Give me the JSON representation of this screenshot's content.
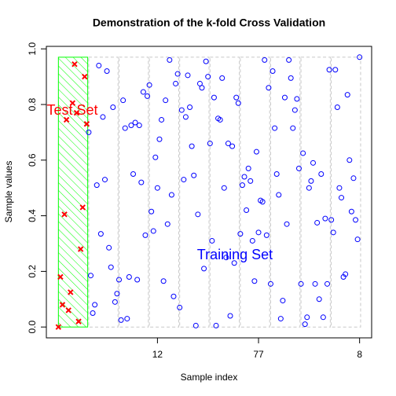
{
  "chart_data": {
    "type": "scatter",
    "title": "Demonstration of the k-fold Cross Validation",
    "xlabel": "Sample index",
    "ylabel": "Sample values",
    "xlim": [
      -4.96,
      155.96
    ],
    "ylim": [
      -0.039,
      1.009
    ],
    "xticks": [
      {
        "value": 50,
        "label": "12"
      },
      {
        "value": 100,
        "label": "77"
      },
      {
        "value": 150,
        "label": "8"
      }
    ],
    "yticks": [
      {
        "value": 0,
        "label": "0.0"
      },
      0.2,
      0.4,
      0.6,
      0.8,
      {
        "value": 1,
        "label": "1.0"
      }
    ],
    "series": [
      {
        "name": "Test Set",
        "color": "#ff0000",
        "fold_color": "#00ff00",
        "x": [
          1,
          2,
          3,
          4,
          5,
          6,
          7,
          8,
          9,
          10,
          11,
          12,
          13,
          14,
          15
        ],
        "values": [
          0.0,
          0.18,
          0.08,
          0.405,
          0.745,
          0.06,
          0.125,
          0.805,
          0.945,
          0.77,
          0.02,
          0.28,
          0.43,
          0.9,
          0.73
        ]
      },
      {
        "name": "Training Set",
        "color": "#0000ff",
        "fold_color": "#c8c8c8",
        "x": [
          16,
          17,
          18,
          19,
          20,
          21,
          22,
          23,
          24,
          25,
          26,
          27,
          28,
          29,
          30,
          31,
          32,
          33,
          34,
          35,
          36,
          37,
          38,
          39,
          40,
          41,
          42,
          43,
          44,
          45,
          46,
          47,
          48,
          49,
          50,
          51,
          52,
          53,
          54,
          55,
          56,
          57,
          58,
          59,
          60,
          61,
          62,
          63,
          64,
          65,
          66,
          67,
          68,
          69,
          70,
          71,
          72,
          73,
          74,
          75,
          76,
          77,
          78,
          79,
          80,
          81,
          82,
          83,
          84,
          85,
          86,
          87,
          88,
          89,
          90,
          91,
          92,
          93,
          94,
          95,
          96,
          97,
          98,
          99,
          100,
          101,
          102,
          103,
          104,
          105,
          106,
          107,
          108,
          109,
          110,
          111,
          112,
          113,
          114,
          115,
          116,
          117,
          118,
          119,
          120,
          121,
          122,
          123,
          124,
          125,
          126,
          127,
          128,
          129,
          130,
          131,
          132,
          133,
          134,
          135,
          136,
          137,
          138,
          139,
          140,
          141,
          142,
          143,
          144,
          145,
          146,
          147,
          148,
          149,
          150
        ],
        "values": [
          0.7,
          0.185,
          0.05,
          0.08,
          0.51,
          0.94,
          0.335,
          0.755,
          0.53,
          0.92,
          0.285,
          0.215,
          0.79,
          0.09,
          0.12,
          0.17,
          0.025,
          0.815,
          0.715,
          0.03,
          0.18,
          0.725,
          0.55,
          0.735,
          0.17,
          0.725,
          0.52,
          0.845,
          0.33,
          0.83,
          0.87,
          0.415,
          0.345,
          0.61,
          0.5,
          0.675,
          0.745,
          0.165,
          0.815,
          0.37,
          0.96,
          0.475,
          0.11,
          0.875,
          0.91,
          0.07,
          0.78,
          0.53,
          0.755,
          0.905,
          0.79,
          0.65,
          0.545,
          0.005,
          0.405,
          0.875,
          0.86,
          0.21,
          0.955,
          0.9,
          0.66,
          0.31,
          0.825,
          0.005,
          0.75,
          0.745,
          0.895,
          0.5,
          0.25,
          0.66,
          0.04,
          0.65,
          0.23,
          0.825,
          0.805,
          0.335,
          0.51,
          0.54,
          0.42,
          0.57,
          0.525,
          0.31,
          0.165,
          0.63,
          0.34,
          0.455,
          0.45,
          0.96,
          0.33,
          0.86,
          0.155,
          0.92,
          0.715,
          0.55,
          0.475,
          0.03,
          0.095,
          0.825,
          0.37,
          0.96,
          0.895,
          0.715,
          0.78,
          0.82,
          0.57,
          0.155,
          0.625,
          0.01,
          0.035,
          0.5,
          0.525,
          0.59,
          0.155,
          0.375,
          0.1,
          0.55,
          0.035,
          0.39,
          0.155,
          0.925,
          0.385,
          0.34,
          0.925,
          0.79,
          0.5,
          0.465,
          0.18,
          0.19,
          0.835,
          0.6,
          0.415,
          0.535,
          0.385,
          0.315,
          0.97
        ]
      }
    ]
  }
}
